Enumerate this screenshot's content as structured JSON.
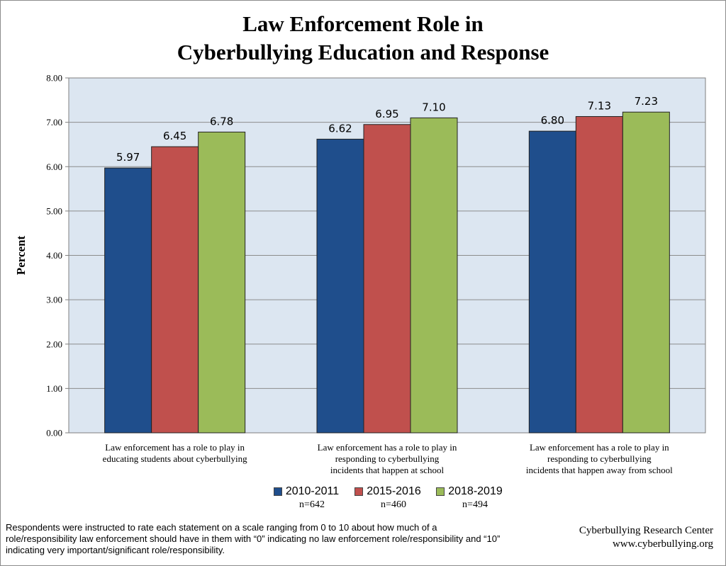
{
  "title_lines": [
    "Law Enforcement Role in",
    "Cyberbullying Education and Response"
  ],
  "chart_data": {
    "type": "bar",
    "title": "Law Enforcement Role in Cyberbullying Education and Response",
    "ylabel": "Percent",
    "xlabel": "",
    "ylim": [
      0,
      8
    ],
    "yticks": [
      "0.00",
      "1.00",
      "2.00",
      "3.00",
      "4.00",
      "5.00",
      "6.00",
      "7.00",
      "8.00"
    ],
    "grid": true,
    "legend_position": "bottom",
    "categories": [
      [
        "Law enforcement has a role to play in",
        "educating students about cyberbullying"
      ],
      [
        "Law enforcement has a role to play in",
        "responding to cyberbullying",
        "incidents that happen at school"
      ],
      [
        "Law enforcement has a role to play in",
        "responding to cyberbullying",
        "incidents that happen away from school"
      ]
    ],
    "series": [
      {
        "name": "2010-2011",
        "n": "n=642",
        "color": "#1f4e8c",
        "values": [
          5.97,
          6.62,
          6.8
        ],
        "labels": [
          "5.97",
          "6.62",
          "6.80"
        ]
      },
      {
        "name": "2015-2016",
        "n": "n=460",
        "color": "#c0504d",
        "values": [
          6.45,
          6.95,
          7.13
        ],
        "labels": [
          "6.45",
          "6.95",
          "7.13"
        ]
      },
      {
        "name": "2018-2019",
        "n": "n=494",
        "color": "#9bbb59",
        "values": [
          6.78,
          7.1,
          7.23
        ],
        "labels": [
          "6.78",
          "7.10",
          "7.23"
        ]
      }
    ],
    "plot_background": "#dce6f1"
  },
  "footnote": "Respondents were instructed to rate each statement on a scale ranging from 0 to 10 about how much of a role/responsibility law enforcement should have in them with “0” indicating no law enforcement role/responsibility and “10” indicating very important/significant role/responsibility.",
  "source": {
    "name": "Cyberbullying Research Center",
    "url": "www.cyberbullying.org"
  }
}
